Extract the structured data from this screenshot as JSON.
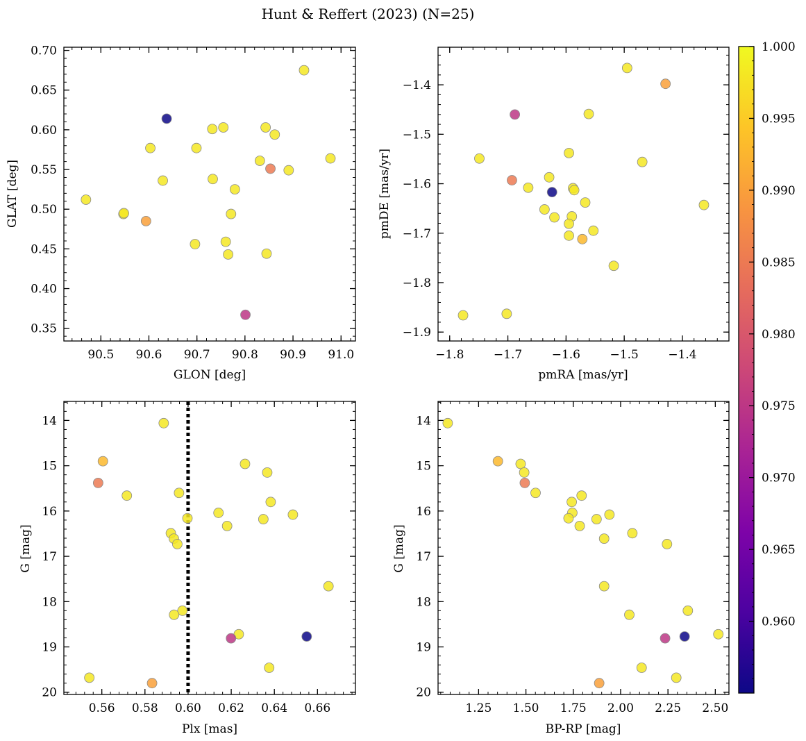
{
  "figure": {
    "title": "Hunt & Reffert (2023) (N=25)",
    "colormap": "plasma",
    "colorbar": {
      "min": 0.955,
      "max": 1.0,
      "ticks": [
        "0.960",
        "0.965",
        "0.970",
        "0.975",
        "0.980",
        "0.985",
        "0.990",
        "0.995",
        "1.000"
      ],
      "tick_values": [
        0.96,
        0.965,
        0.97,
        0.975,
        0.98,
        0.985,
        0.99,
        0.995,
        1.0
      ]
    }
  },
  "chart_data": [
    {
      "type": "scatter",
      "id": "glon-glat",
      "xlabel": "GLON [deg]",
      "ylabel": "GLAT [deg]",
      "xlim": [
        90.423,
        91.03
      ],
      "ylim": [
        0.334,
        0.704
      ],
      "y_inverted": false,
      "xticks": [
        90.5,
        90.6,
        90.7,
        90.8,
        90.9,
        91.0
      ],
      "xtick_labels": [
        "90.5",
        "90.6",
        "90.7",
        "90.8",
        "90.9",
        "91.0"
      ],
      "yticks": [
        0.35,
        0.4,
        0.45,
        0.5,
        0.55,
        0.6,
        0.65,
        0.7
      ],
      "ytick_labels": [
        "0.35",
        "0.40",
        "0.45",
        "0.50",
        "0.55",
        "0.60",
        "0.65",
        "0.70"
      ],
      "points": [
        {
          "x": 90.923,
          "y": 0.675,
          "c": 0.998
        },
        {
          "x": 90.637,
          "y": 0.614,
          "c": 0.955
        },
        {
          "x": 90.755,
          "y": 0.603,
          "c": 0.998
        },
        {
          "x": 90.732,
          "y": 0.601,
          "c": 0.998
        },
        {
          "x": 90.843,
          "y": 0.603,
          "c": 0.998
        },
        {
          "x": 90.862,
          "y": 0.594,
          "c": 0.998
        },
        {
          "x": 90.603,
          "y": 0.577,
          "c": 0.998
        },
        {
          "x": 90.699,
          "y": 0.577,
          "c": 0.998
        },
        {
          "x": 90.978,
          "y": 0.564,
          "c": 0.998
        },
        {
          "x": 90.831,
          "y": 0.561,
          "c": 0.998
        },
        {
          "x": 90.853,
          "y": 0.551,
          "c": 0.985
        },
        {
          "x": 90.891,
          "y": 0.549,
          "c": 0.998
        },
        {
          "x": 90.733,
          "y": 0.538,
          "c": 0.998
        },
        {
          "x": 90.629,
          "y": 0.536,
          "c": 0.998
        },
        {
          "x": 90.779,
          "y": 0.525,
          "c": 0.998
        },
        {
          "x": 90.469,
          "y": 0.512,
          "c": 0.998
        },
        {
          "x": 90.547,
          "y": 0.494,
          "c": 0.998
        },
        {
          "x": 90.548,
          "y": 0.495,
          "c": 0.998
        },
        {
          "x": 90.771,
          "y": 0.494,
          "c": 0.998
        },
        {
          "x": 90.594,
          "y": 0.485,
          "c": 0.99
        },
        {
          "x": 90.696,
          "y": 0.456,
          "c": 0.998
        },
        {
          "x": 90.76,
          "y": 0.459,
          "c": 0.998
        },
        {
          "x": 90.765,
          "y": 0.443,
          "c": 0.998
        },
        {
          "x": 90.845,
          "y": 0.444,
          "c": 0.998
        },
        {
          "x": 90.801,
          "y": 0.367,
          "c": 0.975
        }
      ]
    },
    {
      "type": "scatter",
      "id": "pmra-pmde",
      "xlabel": "pmRA [mas/yr]",
      "ylabel": "pmDE [mas/yr]",
      "xlim": [
        -1.82,
        -1.32
      ],
      "ylim": [
        -1.918,
        -1.324
      ],
      "y_inverted": false,
      "xticks": [
        -1.8,
        -1.7,
        -1.6,
        -1.5,
        -1.4
      ],
      "xtick_labels": [
        "−1.8",
        "−1.7",
        "−1.6",
        "−1.5",
        "−1.4"
      ],
      "yticks": [
        -1.9,
        -1.8,
        -1.7,
        -1.6,
        -1.5,
        -1.4
      ],
      "ytick_labels": [
        "−1.9",
        "−1.8",
        "−1.7",
        "−1.6",
        "−1.5",
        "−1.4"
      ],
      "points": [
        {
          "x": -1.495,
          "y": -1.366,
          "c": 0.998
        },
        {
          "x": -1.429,
          "y": -1.398,
          "c": 0.99
        },
        {
          "x": -1.688,
          "y": -1.46,
          "c": 0.975
        },
        {
          "x": -1.561,
          "y": -1.459,
          "c": 0.998
        },
        {
          "x": -1.595,
          "y": -1.538,
          "c": 0.998
        },
        {
          "x": -1.749,
          "y": -1.549,
          "c": 0.998
        },
        {
          "x": -1.469,
          "y": -1.556,
          "c": 0.998
        },
        {
          "x": -1.629,
          "y": -1.587,
          "c": 0.998
        },
        {
          "x": -1.693,
          "y": -1.593,
          "c": 0.985
        },
        {
          "x": -1.665,
          "y": -1.608,
          "c": 0.998
        },
        {
          "x": -1.588,
          "y": -1.609,
          "c": 0.998
        },
        {
          "x": -1.586,
          "y": -1.613,
          "c": 0.998
        },
        {
          "x": -1.624,
          "y": -1.617,
          "c": 0.955
        },
        {
          "x": -1.567,
          "y": -1.638,
          "c": 0.998
        },
        {
          "x": -1.363,
          "y": -1.643,
          "c": 0.998
        },
        {
          "x": -1.637,
          "y": -1.652,
          "c": 0.998
        },
        {
          "x": -1.62,
          "y": -1.668,
          "c": 0.998
        },
        {
          "x": -1.59,
          "y": -1.666,
          "c": 0.998
        },
        {
          "x": -1.595,
          "y": -1.681,
          "c": 0.998
        },
        {
          "x": -1.553,
          "y": -1.695,
          "c": 0.998
        },
        {
          "x": -1.595,
          "y": -1.705,
          "c": 0.998
        },
        {
          "x": -1.572,
          "y": -1.712,
          "c": 0.993
        },
        {
          "x": -1.518,
          "y": -1.766,
          "c": 0.998
        },
        {
          "x": -1.777,
          "y": -1.866,
          "c": 0.998
        },
        {
          "x": -1.702,
          "y": -1.863,
          "c": 0.998
        }
      ]
    },
    {
      "type": "scatter",
      "id": "plx-g",
      "xlabel": "Plx [mas]",
      "ylabel": "G [mag]",
      "xlim": [
        0.5424,
        0.6776
      ],
      "ylim": [
        20.05,
        13.58
      ],
      "y_inverted": true,
      "xticks": [
        0.56,
        0.58,
        0.6,
        0.62,
        0.64,
        0.66
      ],
      "xtick_labels": [
        "0.56",
        "0.58",
        "0.60",
        "0.62",
        "0.64",
        "0.66"
      ],
      "yticks": [
        14,
        15,
        16,
        17,
        18,
        19,
        20
      ],
      "ytick_labels": [
        "14",
        "15",
        "16",
        "17",
        "18",
        "19",
        "20"
      ],
      "vline": {
        "x": 0.6,
        "style": "dotted"
      },
      "points": [
        {
          "x": 0.5887,
          "y": 14.06,
          "c": 0.998
        },
        {
          "x": 0.5605,
          "y": 14.9,
          "c": 0.993
        },
        {
          "x": 0.6264,
          "y": 14.96,
          "c": 0.998
        },
        {
          "x": 0.6367,
          "y": 15.15,
          "c": 0.998
        },
        {
          "x": 0.5583,
          "y": 15.38,
          "c": 0.985
        },
        {
          "x": 0.5958,
          "y": 15.6,
          "c": 0.998
        },
        {
          "x": 0.5716,
          "y": 15.66,
          "c": 0.998
        },
        {
          "x": 0.6383,
          "y": 15.8,
          "c": 0.998
        },
        {
          "x": 0.6141,
          "y": 16.04,
          "c": 0.998
        },
        {
          "x": 0.6486,
          "y": 16.08,
          "c": 0.998
        },
        {
          "x": 0.5997,
          "y": 16.16,
          "c": 0.998
        },
        {
          "x": 0.6349,
          "y": 16.18,
          "c": 0.998
        },
        {
          "x": 0.6181,
          "y": 16.33,
          "c": 0.998
        },
        {
          "x": 0.592,
          "y": 16.49,
          "c": 0.998
        },
        {
          "x": 0.5934,
          "y": 16.61,
          "c": 0.998
        },
        {
          "x": 0.595,
          "y": 16.73,
          "c": 0.998
        },
        {
          "x": 0.6651,
          "y": 17.66,
          "c": 0.998
        },
        {
          "x": 0.5974,
          "y": 18.2,
          "c": 0.998
        },
        {
          "x": 0.5935,
          "y": 18.29,
          "c": 0.998
        },
        {
          "x": 0.6235,
          "y": 18.72,
          "c": 0.998
        },
        {
          "x": 0.655,
          "y": 18.77,
          "c": 0.955
        },
        {
          "x": 0.6199,
          "y": 18.81,
          "c": 0.975
        },
        {
          "x": 0.6376,
          "y": 19.46,
          "c": 0.998
        },
        {
          "x": 0.5542,
          "y": 19.68,
          "c": 0.998
        },
        {
          "x": 0.5833,
          "y": 19.8,
          "c": 0.99
        }
      ]
    },
    {
      "type": "scatter",
      "id": "bprp-g",
      "xlabel": "BP-RP [mag]",
      "ylabel": "G [mag]",
      "xlim": [
        1.036,
        2.572
      ],
      "ylim": [
        20.05,
        13.58
      ],
      "y_inverted": true,
      "xticks": [
        1.25,
        1.5,
        1.75,
        2.0,
        2.25,
        2.5
      ],
      "xtick_labels": [
        "1.25",
        "1.50",
        "1.75",
        "2.00",
        "2.25",
        "2.50"
      ],
      "yticks": [
        14,
        15,
        16,
        17,
        18,
        19,
        20
      ],
      "ytick_labels": [
        "14",
        "15",
        "16",
        "17",
        "18",
        "19",
        "20"
      ],
      "points": [
        {
          "x": 1.087,
          "y": 14.06,
          "c": 0.998
        },
        {
          "x": 1.352,
          "y": 14.9,
          "c": 0.993
        },
        {
          "x": 1.472,
          "y": 14.96,
          "c": 0.998
        },
        {
          "x": 1.491,
          "y": 15.15,
          "c": 0.998
        },
        {
          "x": 1.494,
          "y": 15.38,
          "c": 0.985
        },
        {
          "x": 1.551,
          "y": 15.6,
          "c": 0.998
        },
        {
          "x": 1.794,
          "y": 15.66,
          "c": 0.998
        },
        {
          "x": 1.742,
          "y": 15.8,
          "c": 0.998
        },
        {
          "x": 1.745,
          "y": 16.04,
          "c": 0.998
        },
        {
          "x": 1.941,
          "y": 16.08,
          "c": 0.998
        },
        {
          "x": 1.725,
          "y": 16.16,
          "c": 0.998
        },
        {
          "x": 1.873,
          "y": 16.18,
          "c": 0.998
        },
        {
          "x": 1.784,
          "y": 16.33,
          "c": 0.998
        },
        {
          "x": 2.062,
          "y": 16.49,
          "c": 0.998
        },
        {
          "x": 1.913,
          "y": 16.61,
          "c": 0.998
        },
        {
          "x": 2.245,
          "y": 16.73,
          "c": 0.998
        },
        {
          "x": 1.913,
          "y": 17.66,
          "c": 0.998
        },
        {
          "x": 2.355,
          "y": 18.2,
          "c": 0.998
        },
        {
          "x": 2.046,
          "y": 18.29,
          "c": 0.998
        },
        {
          "x": 2.516,
          "y": 18.72,
          "c": 0.998
        },
        {
          "x": 2.338,
          "y": 18.77,
          "c": 0.955
        },
        {
          "x": 2.235,
          "y": 18.81,
          "c": 0.975
        },
        {
          "x": 2.111,
          "y": 19.46,
          "c": 0.998
        },
        {
          "x": 2.294,
          "y": 19.68,
          "c": 0.998
        },
        {
          "x": 1.887,
          "y": 19.8,
          "c": 0.99
        }
      ]
    }
  ]
}
